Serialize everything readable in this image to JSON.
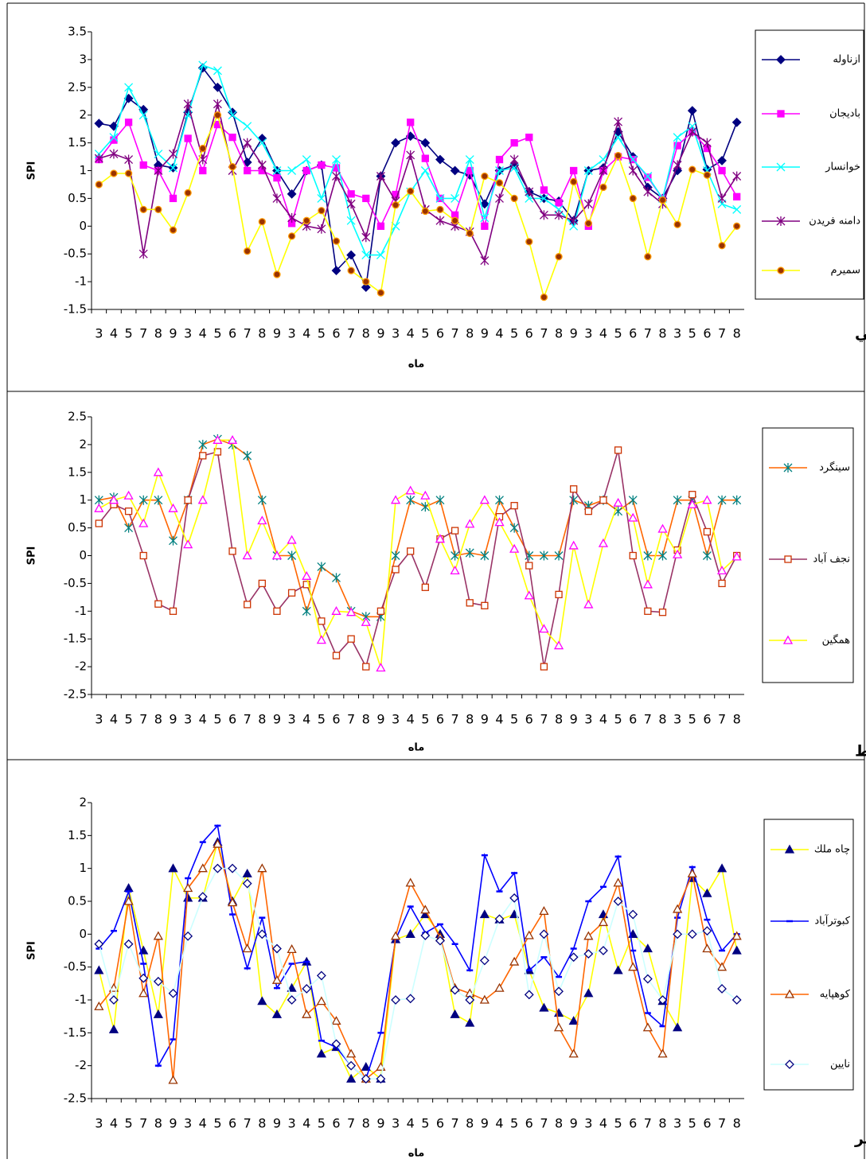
{
  "chart_data": [
    {
      "type": "line",
      "title": "مراتع غني",
      "xlabel": "ماه",
      "ylabel": "SPI",
      "categories": [
        "3",
        "4",
        "5",
        "7",
        "8",
        "9",
        "3",
        "4",
        "5",
        "6",
        "7",
        "8",
        "9",
        "3",
        "4",
        "5",
        "6",
        "7",
        "8",
        "9",
        "3",
        "4",
        "5",
        "6",
        "7",
        "8",
        "9",
        "4",
        "5",
        "6",
        "7",
        "8",
        "9",
        "3",
        "4",
        "5",
        "6",
        "7",
        "8",
        "3",
        "5",
        "6",
        "7",
        "8"
      ],
      "ylim": [
        -1.5,
        3.5
      ],
      "yticks": [
        -1.5,
        -1,
        -0.5,
        0,
        0.5,
        1,
        1.5,
        2,
        2.5,
        3,
        3.5
      ],
      "legend": "right",
      "series": [
        {
          "name": "ازناوله",
          "color": "#000080",
          "marker": "diamond",
          "marker_color": "#000080",
          "marker_fill": "#000080",
          "values": [
            1.85,
            1.8,
            2.3,
            2.1,
            1.1,
            1.05,
            2.05,
            2.85,
            2.5,
            2.05,
            1.15,
            1.58,
            1.0,
            0.58,
            1.0,
            1.1,
            -0.8,
            -0.52,
            -1.1,
            0.9,
            1.5,
            1.62,
            1.5,
            1.2,
            1.0,
            0.92,
            0.4,
            1.0,
            1.1,
            0.62,
            0.5,
            0.45,
            0.1,
            1.0,
            1.05,
            1.7,
            1.25,
            0.7,
            0.5,
            1.0,
            2.08,
            1.02,
            1.18,
            1.87
          ]
        },
        {
          "name": "باديجان",
          "color": "#FF00FF",
          "marker": "square",
          "marker_color": "#FF00FF",
          "marker_fill": "#FF00FF",
          "values": [
            1.2,
            1.55,
            1.87,
            1.1,
            1.0,
            0.5,
            1.58,
            1.0,
            1.83,
            1.6,
            1.0,
            1.0,
            0.87,
            0.05,
            1.0,
            1.1,
            1.05,
            0.58,
            0.5,
            0.0,
            0.57,
            1.87,
            1.22,
            0.5,
            0.2,
            1.0,
            0.0,
            1.2,
            1.5,
            1.6,
            0.65,
            0.42,
            1.0,
            0.0,
            1.0,
            1.25,
            1.2,
            0.88,
            0.5,
            1.45,
            1.7,
            1.4,
            1.0,
            0.53
          ]
        },
        {
          "name": "خوانسار",
          "color": "#00FFFF",
          "marker": "x",
          "marker_color": "#00FFFF",
          "marker_fill": "none",
          "values": [
            1.3,
            1.6,
            2.5,
            2.0,
            1.3,
            1.05,
            2.0,
            2.9,
            2.8,
            2.0,
            1.8,
            1.5,
            1.0,
            1.0,
            1.2,
            0.5,
            1.2,
            0.1,
            -0.52,
            -0.52,
            0.0,
            0.62,
            1.0,
            0.5,
            0.5,
            1.2,
            0.15,
            1.0,
            1.05,
            0.5,
            0.5,
            0.3,
            0.0,
            1.0,
            1.2,
            1.6,
            1.2,
            0.9,
            0.5,
            1.6,
            1.8,
            1.0,
            0.4,
            0.3
          ]
        },
        {
          "name": "دامنه فريدن",
          "color": "#800080",
          "marker": "asterisk",
          "marker_color": "#800080",
          "marker_fill": "none",
          "values": [
            1.22,
            1.3,
            1.2,
            -0.5,
            1.0,
            1.3,
            2.2,
            1.2,
            2.2,
            1.0,
            1.5,
            1.1,
            0.5,
            0.15,
            0.0,
            -0.05,
            0.9,
            0.4,
            -0.2,
            0.9,
            0.45,
            1.28,
            0.3,
            0.1,
            0.0,
            -0.1,
            -0.62,
            0.5,
            1.2,
            0.62,
            0.2,
            0.2,
            0.1,
            0.4,
            1.0,
            1.88,
            1.0,
            0.62,
            0.4,
            1.1,
            1.7,
            1.5,
            0.5,
            0.9
          ]
        },
        {
          "name": "سميرم",
          "color": "#FFFF00",
          "marker": "circle",
          "marker_color": "#FF9900",
          "marker_fill": "#993300",
          "values": [
            0.75,
            0.95,
            0.95,
            0.3,
            0.3,
            -0.07,
            0.6,
            1.4,
            2.0,
            1.07,
            -0.45,
            0.08,
            -0.87,
            -0.18,
            0.1,
            0.28,
            -0.27,
            -0.8,
            -1.0,
            -1.2,
            0.38,
            0.63,
            0.27,
            0.3,
            0.1,
            -0.13,
            0.9,
            0.78,
            0.5,
            -0.28,
            -1.28,
            -0.55,
            0.8,
            0.05,
            0.7,
            1.27,
            0.5,
            -0.55,
            0.47,
            0.03,
            1.02,
            0.92,
            -0.35,
            0.0
          ]
        }
      ]
    },
    {
      "type": "line",
      "title": "مراتع متوسط",
      "xlabel": "ماه",
      "ylabel": "SPI",
      "categories": [
        "3",
        "4",
        "5",
        "7",
        "8",
        "9",
        "3",
        "4",
        "5",
        "6",
        "7",
        "8",
        "9",
        "3",
        "4",
        "5",
        "6",
        "7",
        "8",
        "9",
        "3",
        "4",
        "5",
        "6",
        "7",
        "8",
        "9",
        "4",
        "5",
        "6",
        "7",
        "8",
        "9",
        "3",
        "4",
        "5",
        "6",
        "7",
        "8",
        "3",
        "5",
        "6",
        "7",
        "8"
      ],
      "ylim": [
        -2.5,
        2.5
      ],
      "yticks": [
        -2.5,
        -2,
        -1.5,
        -1,
        -0.5,
        0,
        0.5,
        1,
        1.5,
        2,
        2.5
      ],
      "legend": "right",
      "series": [
        {
          "name": "سينگرد",
          "color": "#FF6600",
          "marker": "asterisk",
          "marker_color": "#008080",
          "marker_fill": "none",
          "values": [
            1.0,
            1.05,
            0.5,
            1.0,
            1.0,
            0.27,
            1.0,
            2.0,
            2.1,
            2.0,
            1.8,
            1.0,
            0.0,
            0.0,
            -1.0,
            -0.2,
            -0.4,
            -1.0,
            -1.1,
            -1.1,
            0.0,
            1.0,
            0.88,
            1.0,
            0.0,
            0.05,
            0.0,
            1.0,
            0.5,
            0.0,
            0.0,
            0.0,
            1.0,
            0.9,
            1.0,
            0.8,
            1.0,
            0.0,
            0.0,
            1.0,
            1.0,
            0.0,
            1.0,
            1.0
          ]
        },
        {
          "name": "نجف آباد",
          "color": "#993366",
          "marker": "square",
          "marker_color": "#CC3300",
          "marker_fill": "#FFFFFF",
          "values": [
            0.58,
            0.92,
            0.8,
            0.0,
            -0.87,
            -1.0,
            1.0,
            1.8,
            1.87,
            0.08,
            -0.88,
            -0.5,
            -1.0,
            -0.67,
            -0.52,
            -1.18,
            -1.8,
            -1.5,
            -2.0,
            -1.0,
            -0.25,
            0.08,
            -0.57,
            0.3,
            0.45,
            -0.85,
            -0.9,
            0.7,
            0.9,
            -0.18,
            -2.0,
            -0.7,
            1.2,
            0.8,
            1.0,
            1.9,
            0.0,
            -1.0,
            -1.02,
            0.1,
            1.1,
            0.43,
            -0.5,
            0.0
          ]
        },
        {
          "name": "همگين",
          "color": "#FFFF00",
          "marker": "triangle",
          "marker_color": "#FF00FF",
          "marker_fill": "#FFFFFF",
          "values": [
            0.85,
            1.0,
            1.08,
            0.58,
            1.5,
            0.85,
            0.2,
            1.0,
            2.08,
            2.08,
            0.0,
            0.63,
            0.0,
            0.28,
            -0.37,
            -1.52,
            -1.0,
            -1.02,
            -1.2,
            -2.02,
            1.0,
            1.17,
            1.08,
            0.3,
            -0.27,
            0.57,
            1.0,
            0.6,
            0.12,
            -0.72,
            -1.32,
            -1.62,
            0.18,
            -0.88,
            0.22,
            0.95,
            0.68,
            -0.52,
            0.48,
            0.02,
            0.92,
            1.0,
            -0.27,
            -0.02
          ]
        }
      ]
    },
    {
      "type": "line",
      "title": "مراتع فقير",
      "xlabel": "ماه",
      "ylabel": "SPI",
      "categories": [
        "3",
        "4",
        "5",
        "7",
        "8",
        "9",
        "3",
        "4",
        "5",
        "6",
        "7",
        "8",
        "9",
        "3",
        "4",
        "5",
        "6",
        "7",
        "8",
        "9",
        "3",
        "4",
        "5",
        "6",
        "7",
        "8",
        "9",
        "4",
        "5",
        "6",
        "7",
        "8",
        "9",
        "3",
        "4",
        "5",
        "6",
        "7",
        "8",
        "3",
        "5",
        "6",
        "7",
        "8"
      ],
      "ylim": [
        -2.5,
        2
      ],
      "yticks": [
        -2.5,
        -2,
        -1.5,
        -1,
        -0.5,
        0,
        0.5,
        1,
        1.5,
        2
      ],
      "legend": "right",
      "series": [
        {
          "name": "چاه ملك",
          "color": "#FFFF00",
          "marker": "triangle",
          "marker_color": "#000080",
          "marker_fill": "#000080",
          "values": [
            -0.55,
            -1.45,
            0.7,
            -0.25,
            -1.22,
            1.0,
            0.55,
            0.55,
            1.4,
            0.5,
            0.92,
            -1.02,
            -1.22,
            -0.82,
            -0.42,
            -1.82,
            -1.72,
            -2.2,
            -2.02,
            -2.2,
            -0.08,
            0.0,
            0.3,
            0.0,
            -1.22,
            -1.35,
            0.3,
            0.22,
            0.3,
            -0.55,
            -1.12,
            -1.2,
            -1.32,
            -0.9,
            0.3,
            -0.55,
            0.0,
            -0.22,
            -1.02,
            -1.42,
            0.85,
            0.62,
            1.0,
            -0.25
          ]
        },
        {
          "name": "كبوترآباد",
          "color": "#0000FF",
          "marker": "dash",
          "marker_color": "#0000FF",
          "marker_fill": "none",
          "values": [
            -0.22,
            0.05,
            0.65,
            -0.45,
            -2.0,
            -1.6,
            0.85,
            1.4,
            1.65,
            0.3,
            -0.52,
            0.25,
            -0.82,
            -0.45,
            -0.42,
            -1.62,
            -1.72,
            -2.0,
            -2.2,
            -1.5,
            -0.08,
            0.42,
            0.02,
            0.15,
            -0.15,
            -0.55,
            1.2,
            0.65,
            0.93,
            -0.55,
            -0.35,
            -0.65,
            -0.22,
            0.5,
            0.72,
            1.18,
            -0.25,
            -1.2,
            -1.4,
            0.25,
            1.02,
            0.22,
            -0.25,
            0.0
          ]
        },
        {
          "name": "كوهپايه",
          "color": "#FF6600",
          "marker": "triangle",
          "marker_color": "#993300",
          "marker_fill": "#FFFFFF",
          "values": [
            -1.1,
            -0.82,
            0.5,
            -0.9,
            -0.03,
            -2.22,
            0.7,
            1.0,
            1.37,
            0.48,
            -0.22,
            1.0,
            -0.7,
            -0.23,
            -1.22,
            -1.02,
            -1.32,
            -1.82,
            -2.2,
            -2.02,
            -0.03,
            0.78,
            0.37,
            -0.05,
            -0.82,
            -0.9,
            -1.0,
            -0.82,
            -0.42,
            -0.02,
            0.35,
            -1.42,
            -1.82,
            -0.03,
            0.18,
            0.78,
            -0.5,
            -1.42,
            -1.82,
            0.38,
            0.92,
            -0.22,
            -0.5,
            -0.03
          ]
        },
        {
          "name": "نايين",
          "color": "#CCFFFF",
          "marker": "diamond",
          "marker_color": "#000080",
          "marker_fill": "#FFFFFF",
          "values": [
            -0.15,
            -1.0,
            -0.15,
            -0.67,
            -0.72,
            -0.9,
            -0.03,
            0.57,
            1.0,
            1.0,
            0.77,
            0.0,
            -0.22,
            -1.0,
            -0.83,
            -0.63,
            -1.67,
            -2.0,
            -2.2,
            -2.2,
            -1.0,
            -0.98,
            -0.02,
            -0.1,
            -0.85,
            -1.0,
            -0.4,
            0.23,
            0.55,
            -0.92,
            0.0,
            -0.87,
            -0.35,
            -0.3,
            -0.25,
            0.5,
            0.3,
            -0.68,
            -1.0,
            0.0,
            0.0,
            0.05,
            -0.83,
            -1.0
          ]
        }
      ]
    }
  ]
}
